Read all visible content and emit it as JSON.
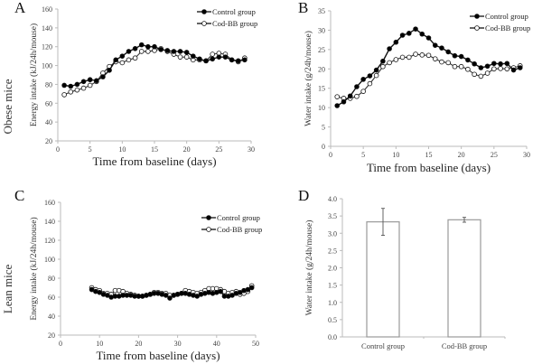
{
  "figure": {
    "row_labels": [
      "Obese mice",
      "Lean mice"
    ],
    "legend": [
      "Control group",
      "Cod-BB group"
    ]
  },
  "chart_data": [
    {
      "id": "A",
      "panel_label": "A",
      "type": "line",
      "title": "",
      "xlabel": "Time from baseline (days)",
      "ylabel": "Energy intake (kJ/24h/mouse)",
      "xlim": [
        0,
        30
      ],
      "ylim": [
        20,
        160
      ],
      "xticks": [
        0,
        5,
        10,
        15,
        20,
        25,
        30
      ],
      "yticks": [
        20,
        40,
        60,
        80,
        100,
        120,
        140,
        160
      ],
      "legend_position": "top-right",
      "grid": false,
      "x": [
        1,
        2,
        3,
        4,
        5,
        6,
        7,
        8,
        9,
        10,
        11,
        12,
        13,
        14,
        15,
        16,
        17,
        18,
        19,
        20,
        21,
        22,
        23,
        24,
        25,
        26,
        27,
        28,
        29
      ],
      "series": [
        {
          "name": "Control group",
          "marker": "filled-circle",
          "values": [
            79,
            78,
            80,
            83,
            85,
            84,
            88,
            95,
            106,
            110,
            115,
            118,
            122,
            120,
            120,
            117,
            116,
            115,
            115,
            114,
            110,
            107,
            105,
            107,
            109,
            109,
            106,
            105,
            106
          ]
        },
        {
          "name": "Cod-BB group",
          "marker": "open-circle",
          "values": [
            69,
            72,
            74,
            76,
            79,
            83,
            92,
            99,
            104,
            103,
            106,
            108,
            115,
            115,
            116,
            118,
            115,
            112,
            109,
            109,
            106,
            106,
            105,
            112,
            113,
            112,
            106,
            104,
            108
          ]
        }
      ]
    },
    {
      "id": "B",
      "panel_label": "B",
      "type": "line",
      "title": "",
      "xlabel": "Time from baseline (days)",
      "ylabel": "Water intake (g/24h/mouse)",
      "xlim": [
        0,
        30
      ],
      "ylim": [
        0,
        35
      ],
      "xticks": [
        0,
        5,
        10,
        15,
        20,
        25,
        30
      ],
      "yticks": [
        0,
        5,
        10,
        15,
        20,
        25,
        30,
        35
      ],
      "legend_position": "top-right",
      "grid": false,
      "x": [
        1,
        2,
        3,
        4,
        5,
        6,
        7,
        8,
        9,
        10,
        11,
        12,
        13,
        14,
        15,
        16,
        17,
        18,
        19,
        20,
        21,
        22,
        23,
        24,
        25,
        26,
        27,
        28,
        29
      ],
      "series": [
        {
          "name": "Control group",
          "marker": "filled-circle",
          "values": [
            10.5,
            11.5,
            13,
            15.4,
            17.3,
            18.2,
            19.7,
            22,
            25.2,
            26.9,
            28.7,
            29.2,
            30.3,
            29,
            28,
            26.1,
            25.4,
            24.4,
            23.4,
            23.2,
            22.3,
            21.3,
            20.3,
            20.7,
            21.4,
            21.3,
            21.4,
            19.7,
            20.3
          ]
        },
        {
          "name": "Cod-BB group",
          "marker": "open-circle",
          "values": [
            12.8,
            12.4,
            12.4,
            12.9,
            14.2,
            16.2,
            18.3,
            20.6,
            21.6,
            22.4,
            23,
            23,
            23.8,
            23.6,
            23.5,
            22.6,
            21.8,
            21.6,
            20.6,
            20.6,
            19.9,
            18.6,
            18.1,
            18.9,
            20,
            20.1,
            20,
            20.3,
            20.8
          ]
        }
      ]
    },
    {
      "id": "C",
      "panel_label": "C",
      "type": "line",
      "title": "",
      "xlabel": "Time from baseline (days)",
      "ylabel": "Energy intake (kJ/24h/mouse)",
      "xlim": [
        0,
        50
      ],
      "ylim": [
        20,
        160
      ],
      "xticks": [
        0,
        10,
        20,
        30,
        40,
        50
      ],
      "yticks": [
        20,
        40,
        60,
        80,
        100,
        120,
        140,
        160
      ],
      "legend_position": "top-right",
      "grid": false,
      "x": [
        8,
        9,
        10,
        11,
        12,
        13,
        14,
        15,
        16,
        17,
        18,
        19,
        20,
        21,
        22,
        23,
        24,
        25,
        26,
        27,
        28,
        29,
        30,
        31,
        32,
        33,
        34,
        35,
        36,
        37,
        38,
        39,
        40,
        41,
        42,
        43,
        44,
        45,
        46,
        47,
        48,
        49
      ],
      "series": [
        {
          "name": "Control group",
          "marker": "filled-circle",
          "values": [
            68,
            66,
            65,
            63,
            62,
            60,
            61,
            61,
            62,
            62,
            62,
            61,
            61,
            61,
            62,
            63,
            64,
            64,
            63,
            62,
            59,
            62,
            63,
            64,
            64,
            63,
            62,
            61,
            63,
            64,
            65,
            64,
            65,
            66,
            61,
            61,
            62,
            64,
            65,
            67,
            68,
            70
          ]
        },
        {
          "name": "Cod-BB group",
          "marker": "open-circle",
          "values": [
            70,
            68,
            67,
            64,
            64,
            63,
            67,
            67,
            66,
            64,
            63,
            62,
            61,
            61,
            62,
            63,
            65,
            65,
            64,
            64,
            62,
            62,
            63,
            64,
            67,
            66,
            65,
            64,
            65,
            67,
            69,
            69,
            69,
            68,
            66,
            64,
            65,
            66,
            63,
            64,
            66,
            72
          ]
        }
      ]
    },
    {
      "id": "D",
      "panel_label": "D",
      "type": "bar",
      "title": "",
      "xlabel": "",
      "ylabel": "Water intake (g/24h/mouse)",
      "ylim": [
        0,
        4.0
      ],
      "yticks": [
        "0.0",
        "0.5",
        "1.0",
        "1.5",
        "2.0",
        "2.5",
        "3.0",
        "3.5",
        "4.0"
      ],
      "grid": false,
      "categories": [
        "Control group",
        "Cod-BB group"
      ],
      "values": [
        3.33,
        3.39
      ],
      "errors": [
        0.39,
        0.07
      ]
    }
  ]
}
